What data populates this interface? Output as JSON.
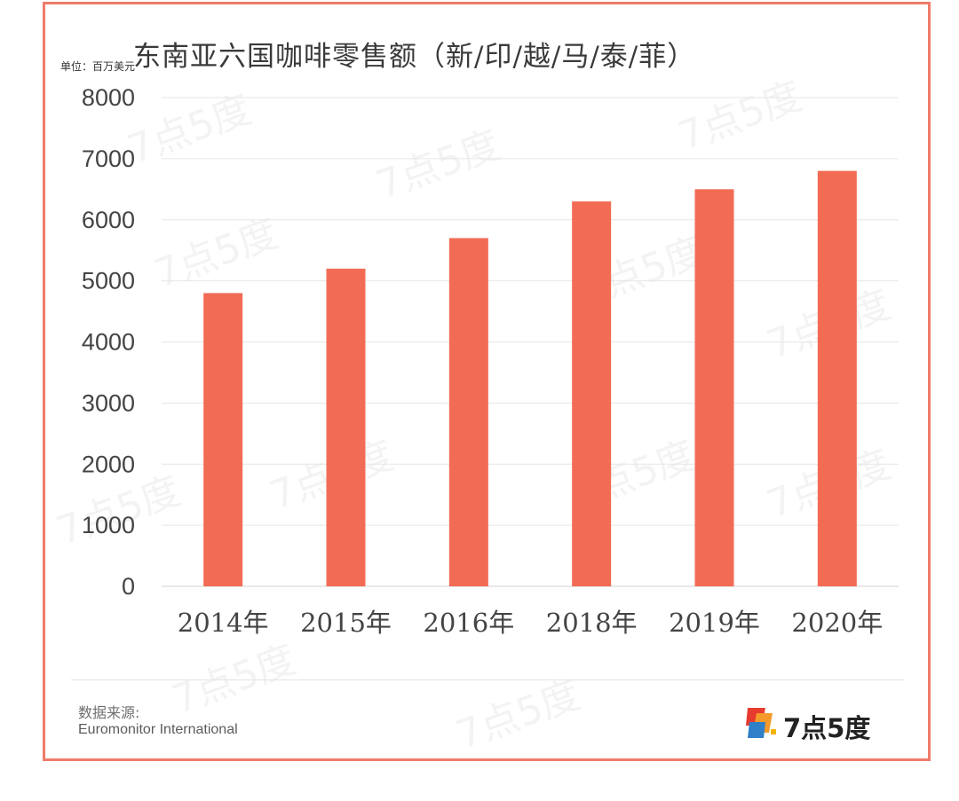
{
  "chart_data": {
    "type": "bar",
    "title": "东南亚六国咖啡零售额（新/印/越/马/泰/菲）",
    "unit_label": "单位：百万美元",
    "categories": [
      "2014年",
      "2015年",
      "2016年",
      "2018年",
      "2019年",
      "2020年"
    ],
    "values": [
      4800,
      5200,
      5700,
      6300,
      6500,
      6800
    ],
    "ylim": [
      0,
      8000
    ],
    "yticks": [
      0,
      1000,
      2000,
      3000,
      4000,
      5000,
      6000,
      7000,
      8000
    ],
    "xlabel": "",
    "ylabel": "",
    "grid": true,
    "legend": "none",
    "bar_color": "#f26c55"
  },
  "source": {
    "label": "数据来源:",
    "value": "Euromonitor International"
  },
  "brand": {
    "text": "7点5度",
    "watermark": "7点5度"
  },
  "colors": {
    "frame": "#ef7b6a",
    "bar": "#f26c55",
    "grid": "#e6e6e6",
    "axis_text": "#444444"
  }
}
